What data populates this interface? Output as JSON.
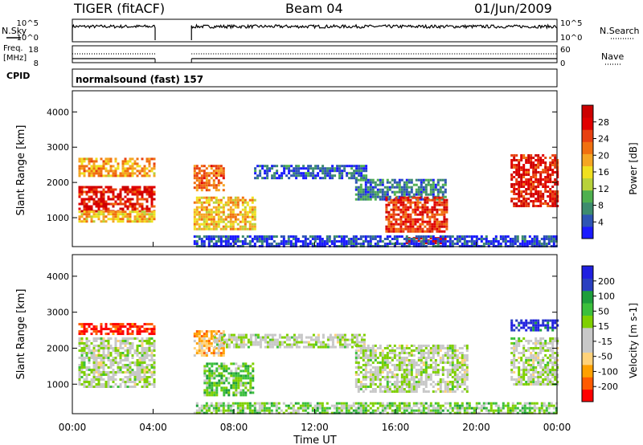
{
  "header": {
    "title": "TIGER (fitACF)",
    "beam": "Beam 04",
    "date": "01/Jun/2009"
  },
  "left_labels": {
    "nsky": "N.Sky",
    "freq_line1": "Freq.",
    "freq_line2": "[MHz]",
    "cpid": "CPID"
  },
  "right_labels": {
    "nsearch": "N.Search",
    "nave": "Nave"
  },
  "cpid_text": "normalsound (fast) 157",
  "noise_ticks": {
    "top": "10^5",
    "bottom": "10^0"
  },
  "freq_ticks": {
    "left": [
      "18",
      "8"
    ],
    "right": [
      "60",
      "0"
    ]
  },
  "colors": {
    "power": [
      "#1a1aff",
      "#2e55b4",
      "#3d8c6e",
      "#4fb04f",
      "#b8d23a",
      "#f0e020",
      "#f5a623",
      "#f07010",
      "#e84010",
      "#e00000",
      "#cc0000"
    ],
    "velocity": [
      "#ff0000",
      "#ff5a00",
      "#ffa000",
      "#ffd27a",
      "#c8c8c8",
      "#c8c8c8",
      "#7fd000",
      "#3cc03c",
      "#1e9e3c",
      "#2a40c0",
      "#2020e0"
    ]
  },
  "chart_data": [
    {
      "type": "heatmap",
      "name": "power",
      "ylabel": "Slant Range [km]",
      "ylim": [
        180,
        4600
      ],
      "yticks": [
        "1000",
        "2000",
        "3000",
        "4000"
      ],
      "xlim_hours": [
        0,
        24
      ],
      "colorbar": {
        "label": "Power [dB]",
        "ticks": [
          "4",
          "8",
          "12",
          "16",
          "20",
          "24",
          "28"
        ],
        "range": [
          0,
          32
        ]
      },
      "regions": [
        {
          "t": [
            0.3,
            4.1
          ],
          "r": [
            1200,
            1900
          ],
          "level": 0.85
        },
        {
          "t": [
            0.3,
            4.1
          ],
          "r": [
            900,
            1200
          ],
          "level": 0.55
        },
        {
          "t": [
            0.3,
            4.1
          ],
          "r": [
            2200,
            2700
          ],
          "level": 0.6
        },
        {
          "t": [
            6.0,
            7.5
          ],
          "r": [
            1800,
            2500
          ],
          "level": 0.7
        },
        {
          "t": [
            6.0,
            9.0
          ],
          "r": [
            700,
            1600
          ],
          "level": 0.55
        },
        {
          "t": [
            9.0,
            14.5
          ],
          "r": [
            2100,
            2500
          ],
          "level": 0.15
        },
        {
          "t": [
            14.0,
            18.5
          ],
          "r": [
            1500,
            2100
          ],
          "level": 0.2
        },
        {
          "t": [
            15.5,
            18.5
          ],
          "r": [
            600,
            1600
          ],
          "level": 0.8
        },
        {
          "t": [
            16.5,
            18.5
          ],
          "r": [
            300,
            450
          ],
          "level": 0.95
        },
        {
          "t": [
            21.7,
            24.0
          ],
          "r": [
            1300,
            2800
          ],
          "level": 0.85
        },
        {
          "t": [
            6.0,
            24.0
          ],
          "r": [
            200,
            500
          ],
          "level": 0.1
        }
      ]
    },
    {
      "type": "heatmap",
      "name": "velocity",
      "ylabel": "Slant Range [km]",
      "ylim": [
        180,
        4600
      ],
      "yticks": [
        "1000",
        "2000",
        "3000",
        "4000"
      ],
      "xlim_hours": [
        0,
        24
      ],
      "xlabel": "Time UT",
      "xticks": [
        "00:00",
        "04:00",
        "08:00",
        "12:00",
        "16:00",
        "20:00",
        "00:00"
      ],
      "colorbar": {
        "label": "Velocity [m s-1]",
        "ticks": [
          "200",
          "100",
          "50",
          "15",
          "-15",
          "-50",
          "-100",
          "-200"
        ]
      },
      "regions": [
        {
          "t": [
            0.3,
            4.1
          ],
          "r": [
            2400,
            2700
          ],
          "level": 0.05
        },
        {
          "t": [
            0.3,
            4.1
          ],
          "r": [
            900,
            2300
          ],
          "level": 0.5
        },
        {
          "t": [
            6.0,
            7.5
          ],
          "r": [
            1800,
            2500
          ],
          "level": 0.3
        },
        {
          "t": [
            6.5,
            9.0
          ],
          "r": [
            700,
            1600
          ],
          "level": 0.65
        },
        {
          "t": [
            7.0,
            14.5
          ],
          "r": [
            2000,
            2400
          ],
          "level": 0.5
        },
        {
          "t": [
            14.0,
            19.5
          ],
          "r": [
            800,
            2100
          ],
          "level": 0.5
        },
        {
          "t": [
            21.7,
            24.0
          ],
          "r": [
            2500,
            2800
          ],
          "level": 0.95
        },
        {
          "t": [
            21.7,
            24.0
          ],
          "r": [
            1000,
            2300
          ],
          "level": 0.5
        },
        {
          "t": [
            6.0,
            24.0
          ],
          "r": [
            200,
            500
          ],
          "level": 0.6
        }
      ]
    }
  ],
  "gap_hours": [
    4.1,
    5.9
  ]
}
